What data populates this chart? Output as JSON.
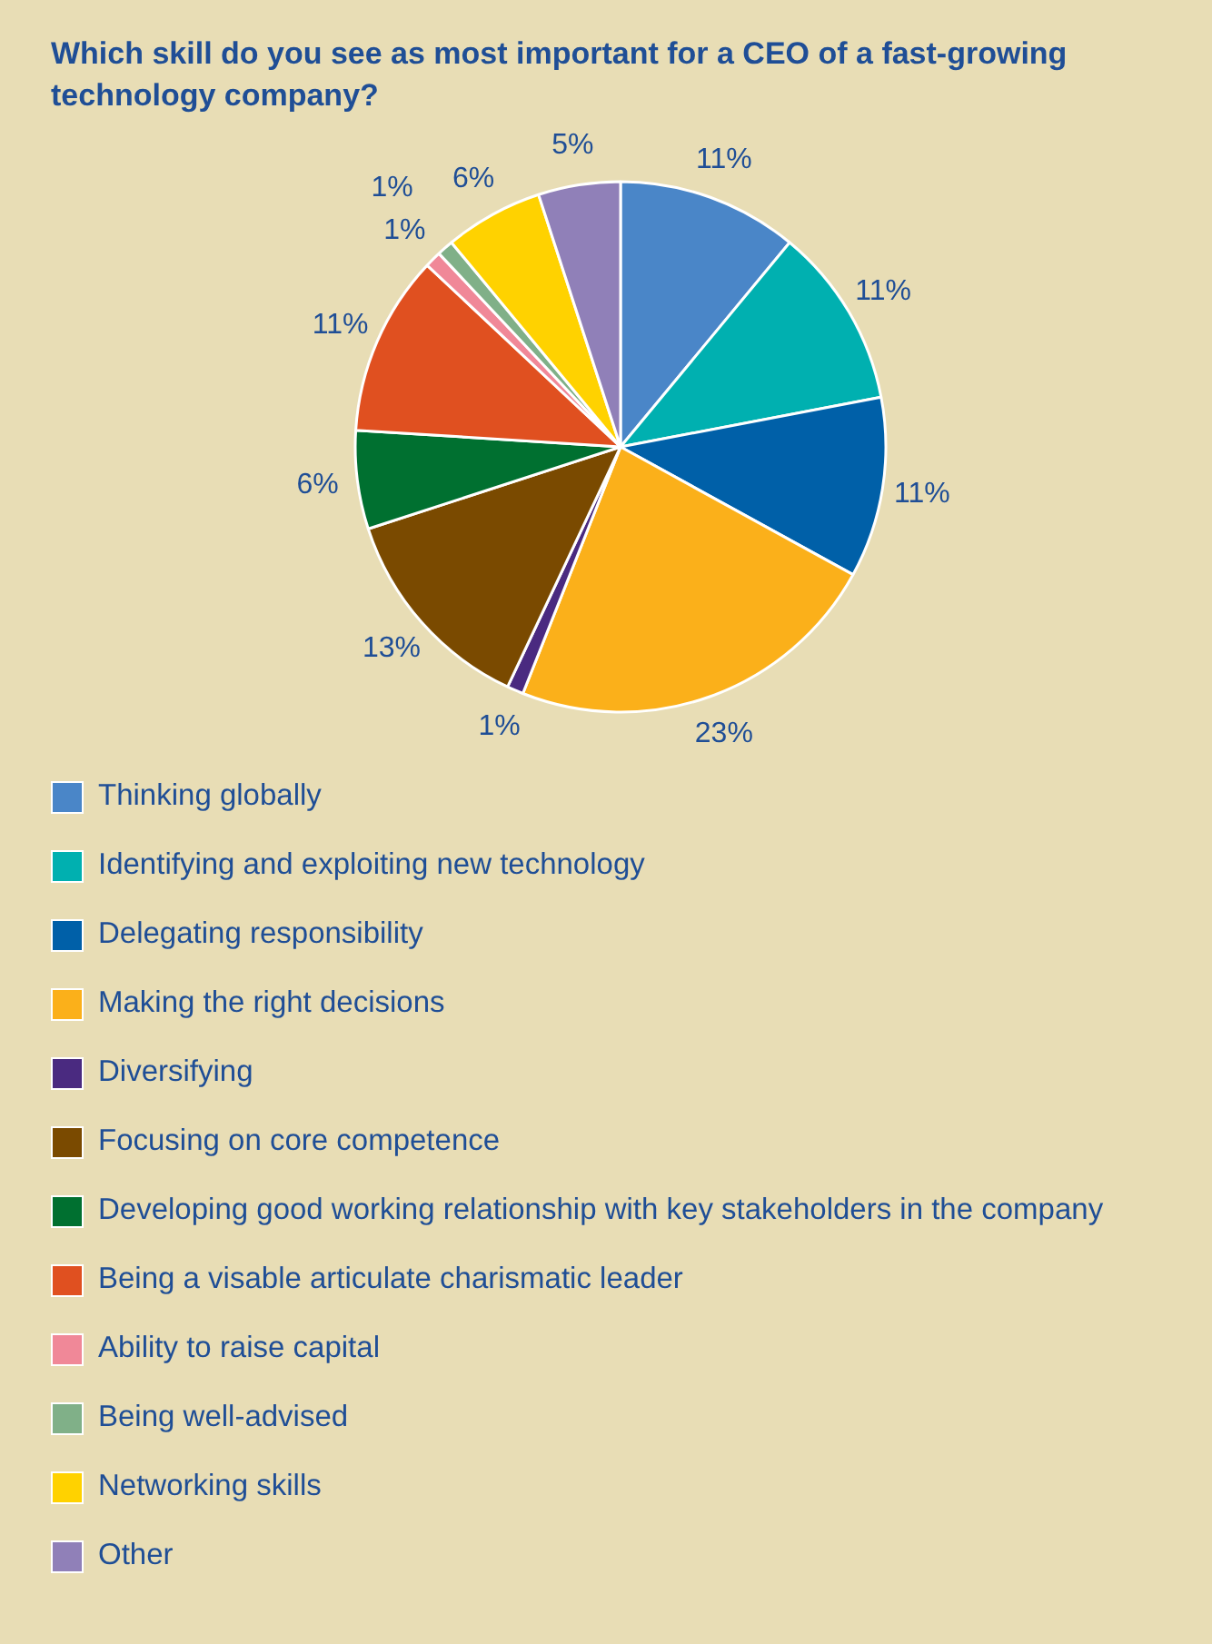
{
  "chart_data": {
    "type": "pie",
    "title": "Which skill do you see as most important for a CEO of a fast-growing technology company?",
    "categories": [
      "Thinking globally",
      "Identifying and exploiting new technology",
      "Delegating responsibility",
      "Making the right decisions",
      "Diversifying",
      "Focusing on core competence",
      "Developing good working relationship with key stakeholders in the company",
      "Being a visable articulate charismatic leader",
      "Ability to raise capital",
      "Being well-advised",
      "Networking skills",
      "Other"
    ],
    "values": [
      11,
      11,
      11,
      23,
      1,
      13,
      6,
      11,
      1,
      1,
      6,
      5
    ],
    "colors": [
      "#4a86c8",
      "#00b0b0",
      "#0060a8",
      "#fbb01a",
      "#4a2a80",
      "#7a4a00",
      "#007030",
      "#e05020",
      "#f08898",
      "#80b088",
      "#ffd200",
      "#9080b8"
    ],
    "value_labels": [
      "11%",
      "11%",
      "11%",
      "23%",
      "1%",
      "13%",
      "6%",
      "11%",
      "1%",
      "1%",
      "6%",
      "5%"
    ],
    "legend": "bottom"
  }
}
